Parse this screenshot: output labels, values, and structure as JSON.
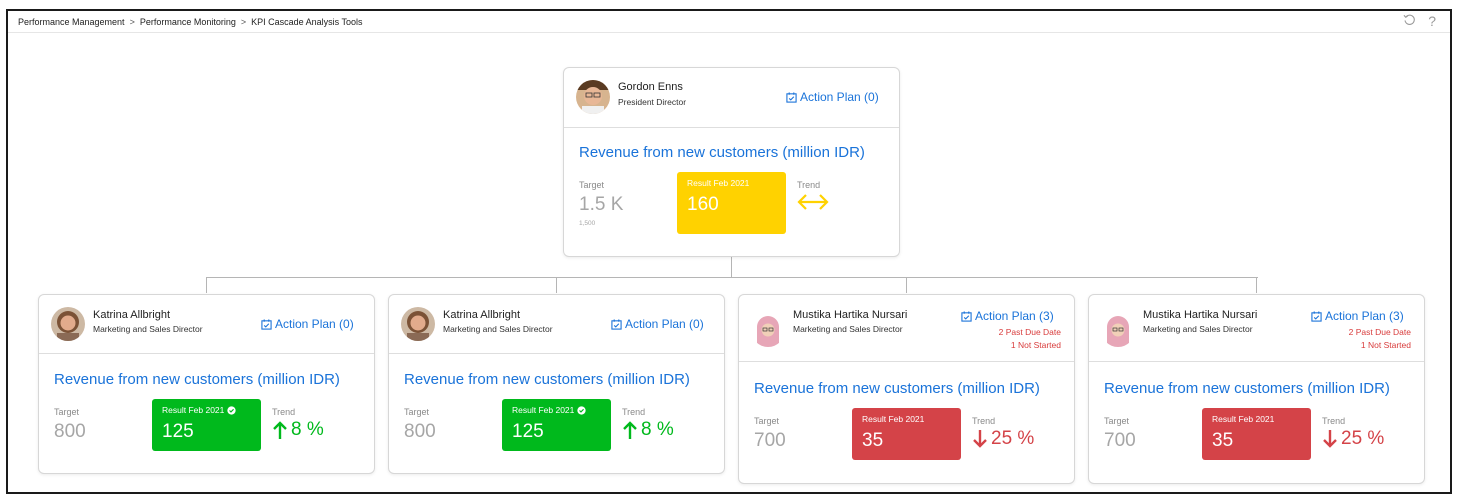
{
  "breadcrumb": {
    "items": [
      "Performance Management",
      "Performance Monitoring",
      "KPI Cascade Analysis Tools"
    ],
    "separator": ">"
  },
  "toolbar": {
    "refresh_icon": "refresh-icon",
    "help_icon": "?"
  },
  "colors": {
    "link": "#1a73d9",
    "yellow": "#ffd200",
    "green": "#00b91c",
    "red": "#d44348",
    "warn_text": "#d83b3b"
  },
  "root": {
    "name": "Gordon Enns",
    "role": "President Director",
    "action_plan": "Action Plan (0)",
    "kpi": "Revenue from new customers (million IDR)",
    "target_label": "Target",
    "target_value": "1.5 K",
    "target_sub": "1,500",
    "result_label": "Result Feb 2021",
    "result_value": "160",
    "trend_label": "Trend",
    "trend_value": "",
    "trend_icon": "left-right-arrow-icon"
  },
  "children": [
    {
      "name": "Katrina Allbright",
      "role": "Marketing and Sales Director",
      "action_plan": "Action Plan (0)",
      "kpi": "Revenue from new customers (million IDR)",
      "target_label": "Target",
      "target_value": "800",
      "result_label": "Result Feb 2021",
      "result_value": "125",
      "trend_label": "Trend",
      "trend_value": "8 %"
    },
    {
      "name": "Katrina Allbright",
      "role": "Marketing and Sales Director",
      "action_plan": "Action Plan (0)",
      "kpi": "Revenue from new customers (million IDR)",
      "target_label": "Target",
      "target_value": "800",
      "result_label": "Result Feb 2021",
      "result_value": "125",
      "trend_label": "Trend",
      "trend_value": "8 %"
    },
    {
      "name": "Mustika Hartika Nursari",
      "role": "Marketing and Sales Director",
      "action_plan": "Action Plan (3)",
      "warning_1": "2 Past Due Date",
      "warning_2": "1 Not Started",
      "kpi": "Revenue from new customers (million IDR)",
      "target_label": "Target",
      "target_value": "700",
      "result_label": "Result Feb 2021",
      "result_value": "35",
      "trend_label": "Trend",
      "trend_value": "25 %"
    },
    {
      "name": "Mustika Hartika Nursari",
      "role": "Marketing and Sales Director",
      "action_plan": "Action Plan (3)",
      "warning_1": "2 Past Due Date",
      "warning_2": "1 Not Started",
      "kpi": "Revenue from new customers (million IDR)",
      "target_label": "Target",
      "target_value": "700",
      "result_label": "Result Feb 2021",
      "result_value": "35",
      "trend_label": "Trend",
      "trend_value": "25 %"
    }
  ]
}
